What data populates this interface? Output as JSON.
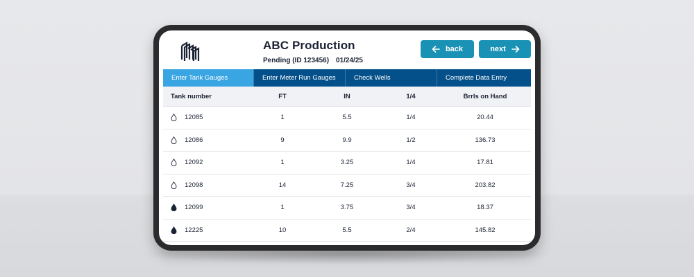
{
  "header": {
    "title": "ABC Production",
    "status": "Pending (ID 123456)",
    "date": "01/24/25"
  },
  "buttons": {
    "back_label": "back",
    "next_label": "next"
  },
  "tabs": [
    {
      "label": "Enter Tank Gauges",
      "active": true
    },
    {
      "label": "Enter Meter Run Gauges",
      "active": false
    },
    {
      "label": "Check Wells",
      "active": false
    },
    {
      "label": "Complete Data Entry",
      "active": false
    }
  ],
  "table": {
    "columns": [
      "Tank number",
      "FT",
      "IN",
      "1/4",
      "Brrls on Hand"
    ],
    "rows": [
      {
        "tank": "12085",
        "ft": "1",
        "in": "5.5",
        "quarter": "1/4",
        "barrels": "20.44",
        "icon": "droplet-outline-icon"
      },
      {
        "tank": "12086",
        "ft": "9",
        "in": "9.9",
        "quarter": "1/2",
        "barrels": "136.73",
        "icon": "droplet-outline-icon"
      },
      {
        "tank": "12092",
        "ft": "1",
        "in": "3.25",
        "quarter": "1/4",
        "barrels": "17.81",
        "icon": "droplet-outline-icon"
      },
      {
        "tank": "12098",
        "ft": "14",
        "in": "7.25",
        "quarter": "3/4",
        "barrels": "203.82",
        "icon": "droplet-outline-icon"
      },
      {
        "tank": "12099",
        "ft": "1",
        "in": "3.75",
        "quarter": "3/4",
        "barrels": "18.37",
        "icon": "droplet-filled-icon"
      },
      {
        "tank": "12225",
        "ft": "10",
        "in": "5.5",
        "quarter": "2/4",
        "barrels": "145.82",
        "icon": "droplet-filled-icon"
      }
    ]
  },
  "colors": {
    "accent": "#1a92b5",
    "tab_bar": "#04508a",
    "tab_active": "#3aa5e3",
    "text": "#1b2233"
  }
}
